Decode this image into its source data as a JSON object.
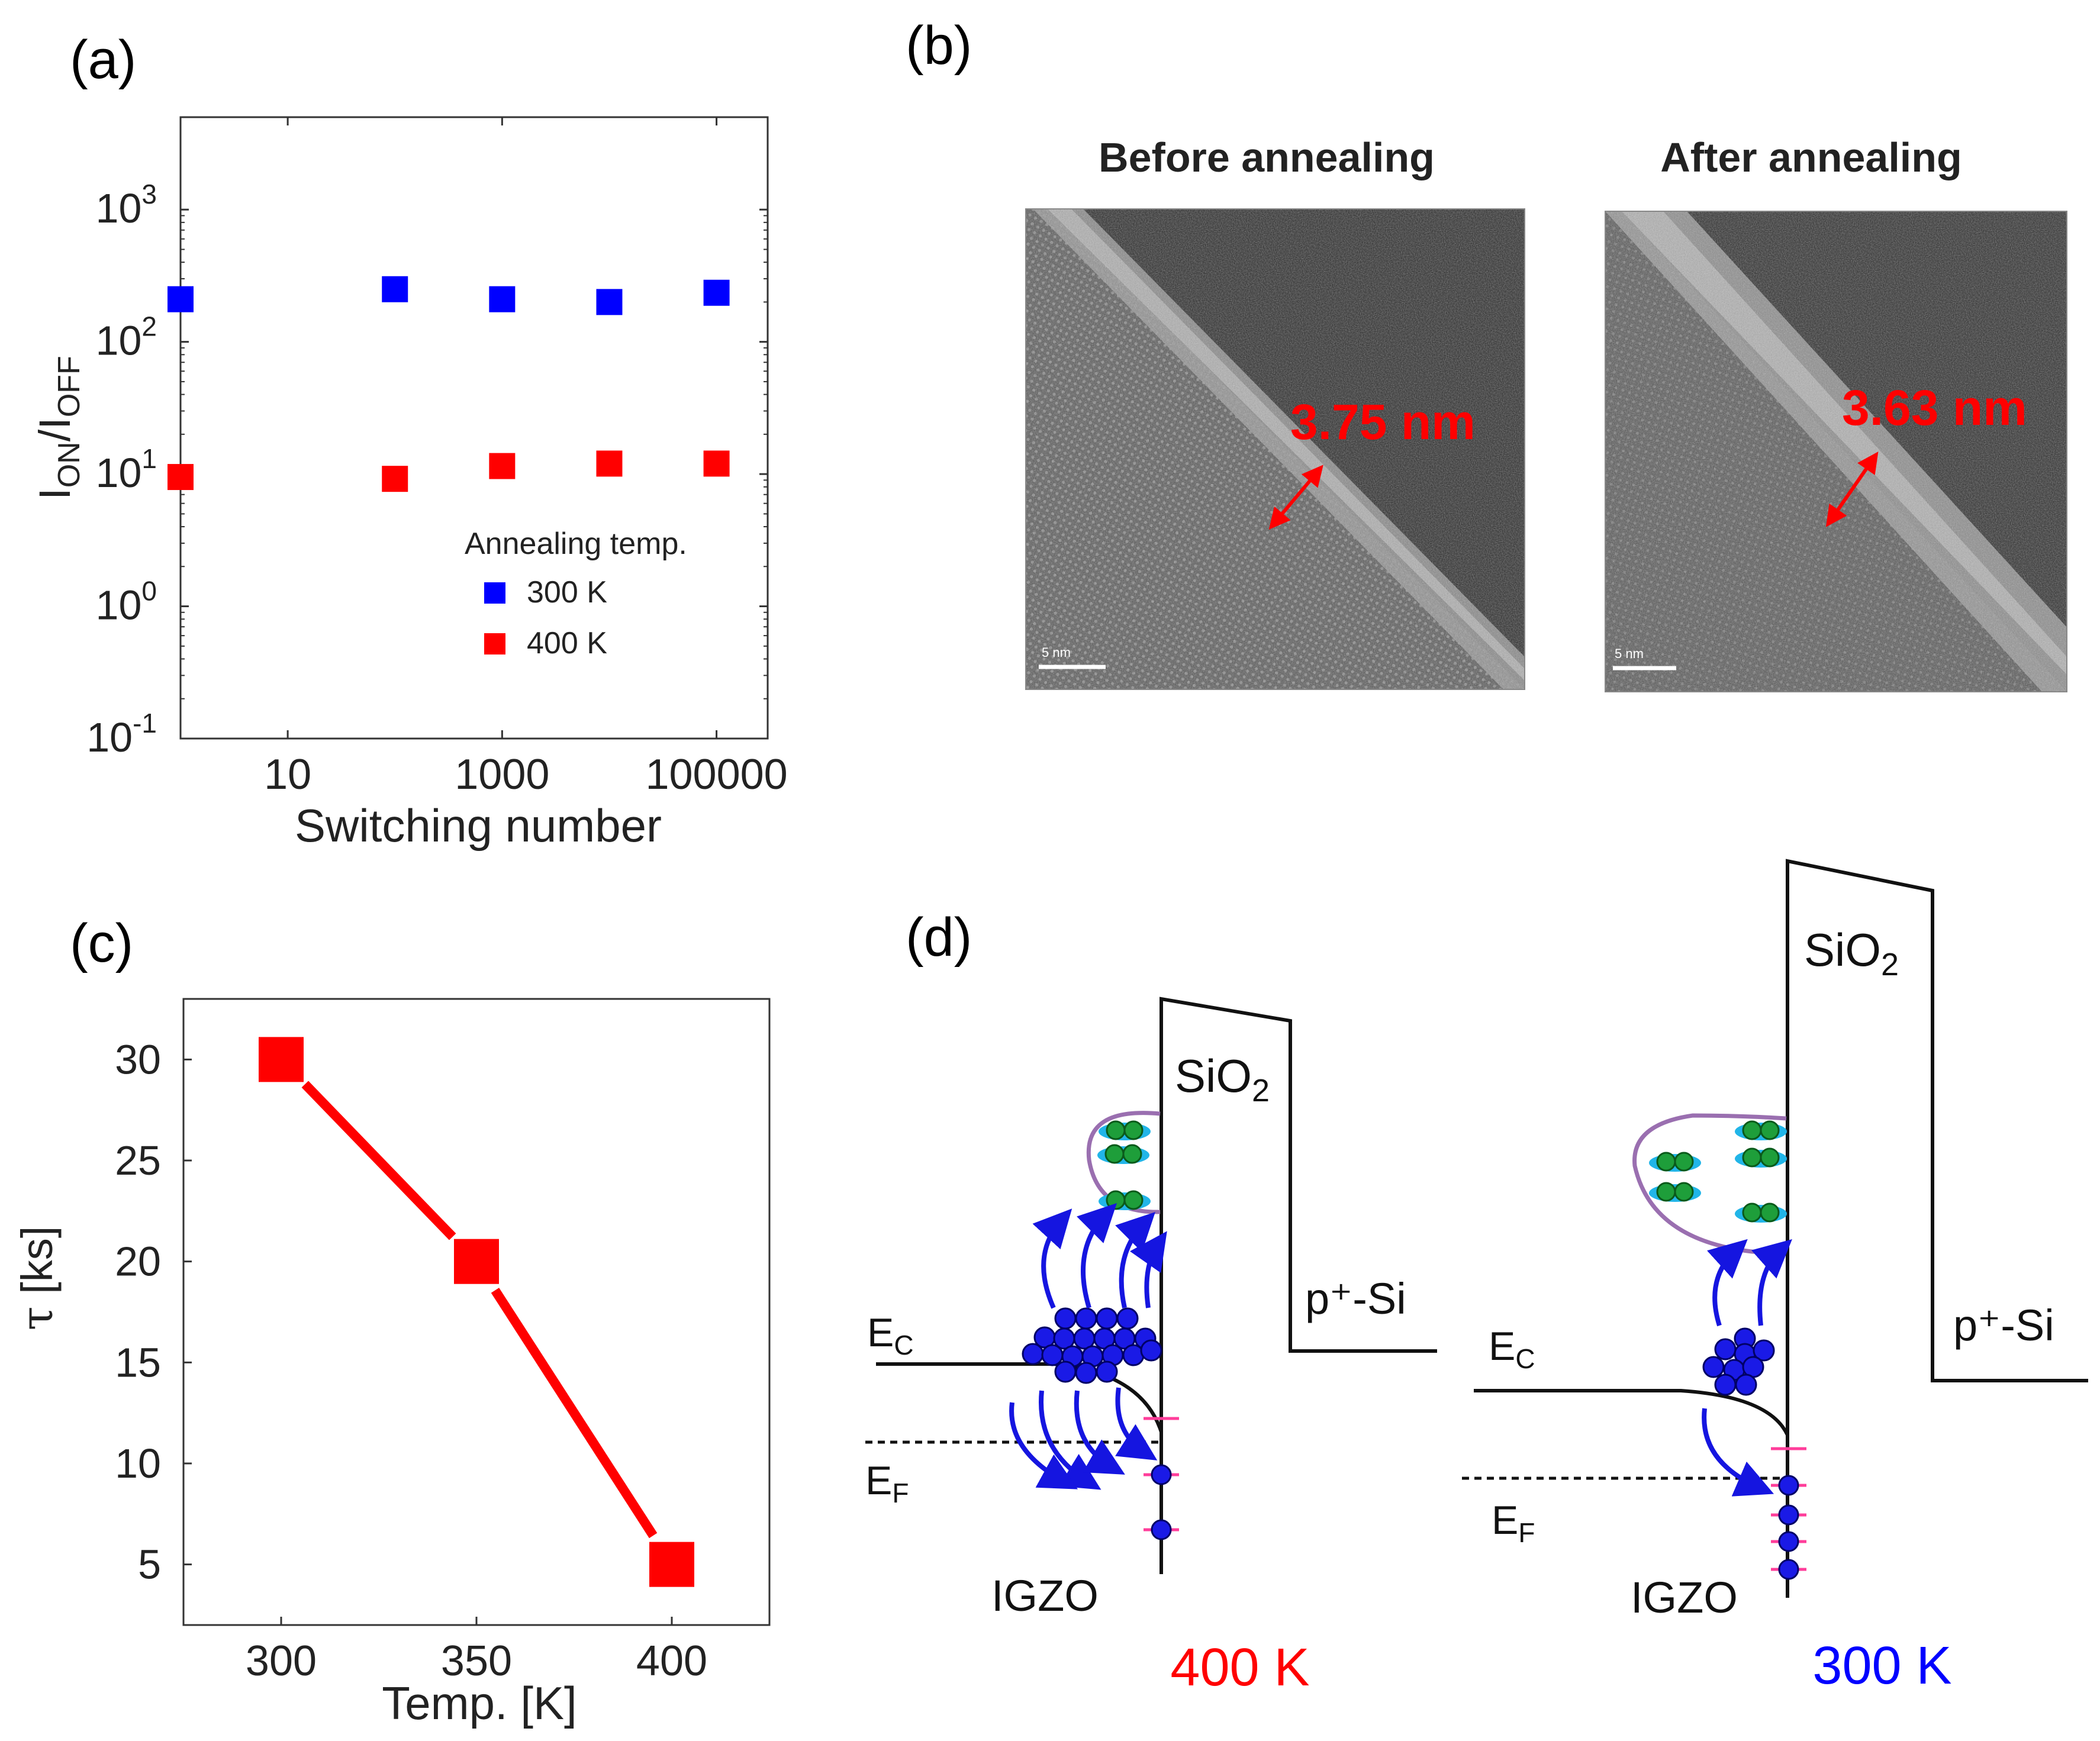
{
  "panels": {
    "a": "(a)",
    "b": "(b)",
    "c": "(c)",
    "d": "(d)"
  },
  "chart_data": [
    {
      "panel": "a",
      "type": "scatter",
      "xscale": "log",
      "yscale": "log",
      "xlabel": "Switching number",
      "ylabel_main": "I",
      "ylabel_sub_on": "ON",
      "ylabel_sub_off": "OFF",
      "xlim": [
        1,
        300000
      ],
      "ylim": [
        0.1,
        5000
      ],
      "x_ticks": [
        {
          "value": 10,
          "label": "10"
        },
        {
          "value": 1000,
          "label": "1000"
        },
        {
          "value": 100000,
          "label": "100000"
        }
      ],
      "y_ticks": [
        {
          "value": 0.1,
          "base": "10",
          "exp": "-1"
        },
        {
          "value": 1,
          "base": "10",
          "exp": "0"
        },
        {
          "value": 10,
          "base": "10",
          "exp": "1"
        },
        {
          "value": 100,
          "base": "10",
          "exp": "2"
        },
        {
          "value": 1000,
          "base": "10",
          "exp": "3"
        }
      ],
      "legend_title": "Annealing temp.",
      "series": [
        {
          "name": "300 K",
          "color": "#0000ff",
          "x": [
            1,
            100,
            1000,
            10000,
            100000
          ],
          "y": [
            210,
            250,
            210,
            200,
            235
          ]
        },
        {
          "name": "400 K",
          "color": "#ff0000",
          "x": [
            1,
            100,
            1000,
            10000,
            100000
          ],
          "y": [
            9.5,
            9.2,
            11.5,
            12.0,
            12.0
          ]
        }
      ]
    },
    {
      "panel": "c",
      "type": "line",
      "xlabel": "Temp. [K]",
      "ylabel_symbol": "τ",
      "ylabel_unit": "[ks]",
      "xlim": [
        275,
        425
      ],
      "ylim": [
        2,
        33
      ],
      "x_ticks": [
        300,
        350,
        400
      ],
      "y_ticks": [
        5,
        10,
        15,
        20,
        25,
        30
      ],
      "series": [
        {
          "name": "tau",
          "color": "#ff0000",
          "x": [
            300,
            350,
            400
          ],
          "y": [
            30,
            20,
            5
          ]
        }
      ]
    }
  ],
  "tem": {
    "before_title": "Before annealing",
    "after_title": "After annealing",
    "before_thickness": "3.75 nm",
    "after_thickness": "3.63 nm",
    "scale_label": "5 nm",
    "accent": "#ff0000"
  },
  "band": {
    "left": {
      "ec": "E",
      "ec_sub": "C",
      "ef": "E",
      "ef_sub": "F",
      "oxide_main": "SiO",
      "oxide_sub": "2",
      "substrate": "p⁺-Si",
      "channel": "IGZO",
      "temp": "400 K",
      "temp_color": "#ff0000"
    },
    "right": {
      "ec": "E",
      "ec_sub": "C",
      "ef": "E",
      "ef_sub": "F",
      "oxide_main": "SiO",
      "oxide_sub": "2",
      "substrate": "p⁺-Si",
      "channel": "IGZO",
      "temp": "300 K",
      "temp_color": "#0000ff"
    }
  }
}
